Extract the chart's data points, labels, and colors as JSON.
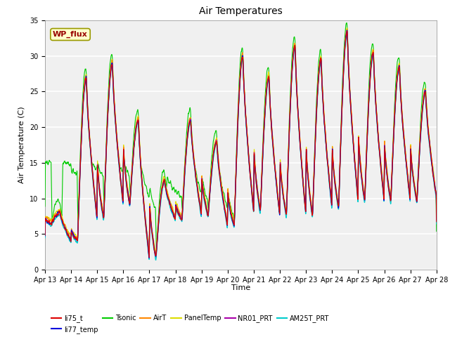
{
  "title": "Air Temperatures",
  "xlabel": "Time",
  "ylabel": "Air Temperature (C)",
  "ylim": [
    0,
    35
  ],
  "x_tick_labels": [
    "Apr 13",
    "Apr 14",
    "Apr 15",
    "Apr 16",
    "Apr 17",
    "Apr 18",
    "Apr 19",
    "Apr 20",
    "Apr 21",
    "Apr 22",
    "Apr 23",
    "Apr 24",
    "Apr 25",
    "Apr 26",
    "Apr 27",
    "Apr 28"
  ],
  "series_colors": {
    "li75_t": "#dd0000",
    "li77_temp": "#0000dd",
    "Tsonic": "#00cc00",
    "AirT": "#ff8800",
    "PanelTemp": "#dddd00",
    "NR01_PRT": "#aa00aa",
    "AM25T_PRT": "#00cccc"
  },
  "background_color": "#d8d8d8",
  "background_light": "#e8e8e8",
  "title_fontsize": 10,
  "axis_label_fontsize": 8,
  "tick_fontsize": 7,
  "legend_fontsize": 7,
  "grid_color": "#cccccc",
  "day_mins": [
    6.5,
    4.0,
    7.0,
    9.0,
    1.5,
    7.0,
    7.5,
    6.0,
    8.0,
    7.5,
    7.5,
    8.5,
    9.5,
    9.5,
    9.5,
    10.0
  ],
  "day_maxs": [
    8.0,
    27.0,
    29.0,
    21.0,
    12.5,
    21.0,
    18.0,
    30.0,
    27.0,
    31.5,
    29.5,
    33.5,
    30.5,
    28.5,
    25.0,
    12.0
  ],
  "tsonic_night_base": 15.0,
  "tsonic_day_extra": 2.0,
  "n_points": 2000
}
